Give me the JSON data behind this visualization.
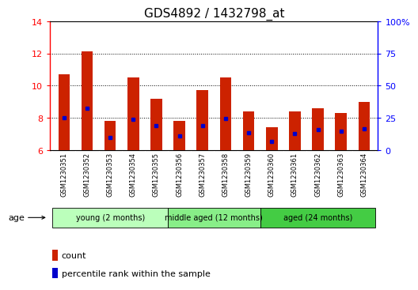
{
  "title": "GDS4892 / 1432798_at",
  "samples": [
    "GSM1230351",
    "GSM1230352",
    "GSM1230353",
    "GSM1230354",
    "GSM1230355",
    "GSM1230356",
    "GSM1230357",
    "GSM1230358",
    "GSM1230359",
    "GSM1230360",
    "GSM1230361",
    "GSM1230362",
    "GSM1230363",
    "GSM1230364"
  ],
  "count_values": [
    10.7,
    12.1,
    7.8,
    10.5,
    9.2,
    7.8,
    9.7,
    10.5,
    8.4,
    7.4,
    8.4,
    8.6,
    8.3,
    9.0
  ],
  "percentile_values": [
    8.0,
    8.6,
    6.8,
    7.9,
    7.5,
    6.9,
    7.5,
    7.95,
    7.1,
    6.55,
    7.05,
    7.25,
    7.2,
    7.3
  ],
  "ylim_left": [
    6,
    14
  ],
  "ylim_right": [
    0,
    100
  ],
  "yticks_left": [
    6,
    8,
    10,
    12,
    14
  ],
  "yticks_right": [
    0,
    25,
    50,
    75,
    100
  ],
  "ytick_labels_right": [
    "0",
    "25",
    "50",
    "75",
    "100%"
  ],
  "bar_color": "#cc2200",
  "percentile_color": "#0000cc",
  "groups": [
    {
      "label": "young (2 months)",
      "start": 0,
      "end": 5,
      "color": "#bbffbb"
    },
    {
      "label": "middle aged (12 months)",
      "start": 5,
      "end": 9,
      "color": "#88ee88"
    },
    {
      "label": "aged (24 months)",
      "start": 9,
      "end": 14,
      "color": "#44cc44"
    }
  ],
  "xlabel_age": "age",
  "legend_count": "count",
  "legend_percentile": "percentile rank within the sample",
  "bar_width": 0.5,
  "background_color": "#ffffff",
  "tick_area_color": "#cccccc",
  "title_fontsize": 11,
  "axis_fontsize": 8
}
